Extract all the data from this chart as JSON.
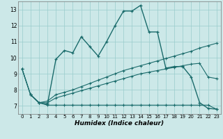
{
  "xlabel": "Humidex (Indice chaleur)",
  "bg_color": "#cce8e8",
  "grid_color": "#99cccc",
  "line_color": "#1a6b6b",
  "xlim": [
    -0.5,
    23.5
  ],
  "ylim": [
    6.5,
    13.5
  ],
  "yticks": [
    7,
    8,
    9,
    10,
    11,
    12,
    13
  ],
  "xticks": [
    0,
    1,
    2,
    3,
    4,
    5,
    6,
    7,
    8,
    9,
    10,
    11,
    12,
    13,
    14,
    15,
    16,
    17,
    18,
    19,
    20,
    21,
    22,
    23
  ],
  "series_main_x": [
    1,
    2,
    3,
    4,
    5,
    6,
    7,
    8,
    9,
    10,
    11,
    12,
    13,
    14,
    15,
    16,
    17,
    18,
    19,
    20,
    21,
    22,
    23
  ],
  "series_main_y": [
    7.7,
    7.2,
    7.1,
    9.9,
    10.45,
    10.3,
    11.3,
    10.7,
    10.1,
    11.0,
    12.0,
    12.9,
    12.9,
    13.25,
    11.6,
    11.6,
    9.35,
    9.45,
    9.45,
    8.8,
    7.2,
    6.85,
    6.8
  ],
  "series_flat1_x": [
    0,
    1,
    2,
    3,
    4,
    5,
    6,
    7,
    8,
    9,
    10,
    11,
    12,
    13,
    14,
    15,
    16,
    17,
    18,
    19,
    20,
    21,
    22,
    23
  ],
  "series_flat1_y": [
    9.3,
    7.7,
    7.2,
    7.05,
    7.05,
    7.05,
    7.05,
    7.05,
    7.05,
    7.05,
    7.05,
    7.05,
    7.05,
    7.05,
    7.05,
    7.05,
    7.05,
    7.05,
    7.05,
    7.05,
    7.05,
    7.05,
    7.05,
    6.8
  ],
  "series_flat2_x": [
    0,
    1,
    2,
    3,
    4,
    5,
    6,
    7,
    8,
    9,
    10,
    11,
    12,
    13,
    14,
    15,
    16,
    17,
    18,
    19,
    20,
    21,
    22,
    23
  ],
  "series_flat2_y": [
    9.3,
    7.7,
    7.2,
    7.2,
    7.5,
    7.65,
    7.8,
    7.95,
    8.1,
    8.25,
    8.4,
    8.55,
    8.7,
    8.85,
    9.0,
    9.1,
    9.2,
    9.3,
    9.4,
    9.5,
    9.6,
    9.65,
    8.8,
    8.7
  ],
  "series_flat3_x": [
    0,
    1,
    2,
    3,
    4,
    5,
    6,
    7,
    8,
    9,
    10,
    11,
    12,
    13,
    14,
    15,
    16,
    17,
    18,
    19,
    20,
    21,
    22,
    23
  ],
  "series_flat3_y": [
    9.3,
    7.7,
    7.2,
    7.3,
    7.7,
    7.85,
    8.0,
    8.2,
    8.4,
    8.6,
    8.8,
    9.0,
    9.2,
    9.35,
    9.5,
    9.65,
    9.8,
    9.95,
    10.1,
    10.25,
    10.4,
    10.6,
    10.75,
    10.9
  ]
}
